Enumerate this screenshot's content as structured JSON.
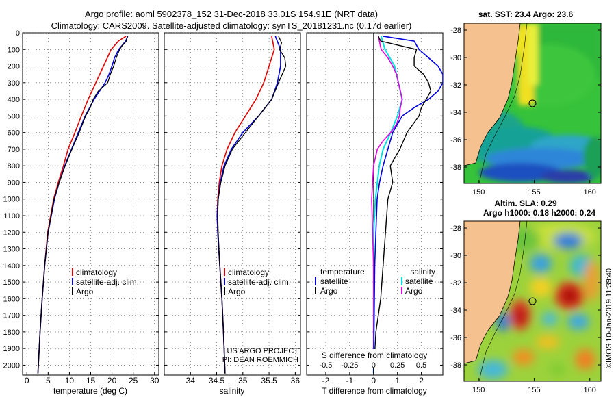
{
  "header": {
    "title_line1": "Argo profile: aoml 5902378_152 31-Dec-2018 33.01S 154.91E (NRT data)",
    "title_line2": "Climatology: CARS2009. Satellite-adjusted climatology: synTS_20181231.nc (0.17d earlier)"
  },
  "depth_axis": {
    "ticks": [
      0,
      100,
      200,
      300,
      400,
      500,
      600,
      700,
      800,
      900,
      1000,
      1100,
      1200,
      1300,
      1400,
      1500,
      1600,
      1700,
      1800,
      1900,
      2000
    ],
    "range": [
      0,
      2060
    ]
  },
  "colors": {
    "climatology": "#e00000",
    "satellite": "#0000dd",
    "argo": "#000000",
    "sat_salinity": "#00e0e0",
    "argo_salinity": "#e000e0",
    "land": "#f5c18e"
  },
  "chart_data": [
    {
      "type": "line",
      "name": "temperature",
      "xlabel": "temperature (deg C)",
      "xlim": [
        -1,
        31
      ],
      "xticks": [
        0,
        5,
        10,
        15,
        20,
        25,
        30
      ],
      "legend": {
        "position": "lower-center",
        "entries": [
          "climatology",
          "satellite-adj. clim.",
          "Argo"
        ]
      },
      "series": [
        {
          "name": "climatology",
          "depth": [
            20,
            50,
            100,
            150,
            200,
            250,
            300,
            400,
            500,
            600,
            700,
            800,
            900,
            1000,
            1200,
            1400,
            1600,
            1800,
            2050
          ],
          "values": [
            23.3,
            21.5,
            19.8,
            18.9,
            18.0,
            17.1,
            16.2,
            14.4,
            12.8,
            11.3,
            9.7,
            8.6,
            7.4,
            6.3,
            4.9,
            4.2,
            3.6,
            3.1,
            2.6
          ]
        },
        {
          "name": "satellite-adj. clim.",
          "depth": [
            20,
            50,
            100,
            150,
            200,
            250,
            300,
            400,
            500,
            600,
            700,
            800,
            900,
            1000,
            1200,
            1400,
            1600,
            1800,
            2050
          ],
          "values": [
            23.7,
            23.2,
            21.6,
            20.6,
            20.0,
            19.3,
            18.4,
            15.8,
            13.7,
            12.1,
            10.5,
            8.9,
            7.6,
            6.5,
            5.0,
            4.2,
            3.6,
            3.1,
            2.6
          ]
        },
        {
          "name": "Argo",
          "depth": [
            20,
            50,
            80,
            100,
            150,
            200,
            250,
            300,
            350,
            400,
            450,
            500,
            600,
            700,
            800,
            900,
            1000,
            1200,
            1400,
            1600,
            1800,
            2050
          ],
          "values": [
            23.6,
            23.4,
            22.3,
            21.8,
            21.0,
            20.4,
            19.6,
            19.0,
            16.8,
            15.6,
            14.9,
            13.8,
            12.3,
            10.6,
            9.0,
            7.6,
            6.4,
            5.0,
            4.2,
            3.6,
            3.1,
            2.6
          ]
        }
      ]
    },
    {
      "type": "line",
      "name": "salinity",
      "xlabel": "salinity",
      "xlim": [
        33.5,
        36.1
      ],
      "xticks": [
        34,
        34.5,
        35,
        35.5,
        36
      ],
      "legend": {
        "position": "lower-center",
        "entries": [
          "climatology",
          "satellite-adj. clim.",
          "Argo"
        ]
      },
      "series": [
        {
          "name": "climatology",
          "depth": [
            20,
            100,
            200,
            300,
            400,
            500,
            600,
            700,
            800,
            900,
            1000,
            1100,
            1200,
            1400,
            1600,
            1800,
            2050
          ],
          "values": [
            35.55,
            35.6,
            35.5,
            35.4,
            35.25,
            35.05,
            34.85,
            34.7,
            34.6,
            34.55,
            34.52,
            34.51,
            34.52,
            34.56,
            34.6,
            34.63,
            34.66
          ]
        },
        {
          "name": "satellite-adj. clim.",
          "depth": [
            20,
            100,
            200,
            300,
            400,
            500,
            600,
            700,
            800,
            900,
            1000,
            1100,
            1200,
            1400,
            1600,
            1800,
            2050
          ],
          "values": [
            35.62,
            35.72,
            35.72,
            35.66,
            35.55,
            35.3,
            35.0,
            34.78,
            34.64,
            34.57,
            34.53,
            34.51,
            34.52,
            34.56,
            34.6,
            34.63,
            34.66
          ]
        },
        {
          "name": "Argo",
          "depth": [
            20,
            60,
            100,
            150,
            200,
            250,
            300,
            400,
            500,
            600,
            700,
            800,
            900,
            1000,
            1100,
            1200,
            1400,
            1600,
            1800,
            2050
          ],
          "values": [
            35.68,
            35.74,
            35.7,
            35.8,
            35.82,
            35.75,
            35.68,
            35.55,
            35.3,
            35.05,
            34.8,
            34.66,
            34.58,
            34.53,
            34.52,
            34.53,
            34.56,
            34.6,
            34.63,
            34.66
          ]
        }
      ]
    },
    {
      "type": "line",
      "name": "difference",
      "xlabel": "T difference from climatology",
      "s_label": "S difference from climatology",
      "xlim": [
        -2.8,
        2.9
      ],
      "xticks": [
        -2,
        -1,
        0,
        1,
        2
      ],
      "s_ticks": [
        "-0.5",
        "-0.25",
        "0",
        "0.25",
        "0.5"
      ],
      "legend_temperature": {
        "title": "temperature",
        "entries": [
          "satellite",
          "Argo"
        ]
      },
      "legend_salinity": {
        "title": "salinity",
        "entries": [
          "satellite",
          "Argo"
        ]
      },
      "series": [
        {
          "name": "temperature satellite",
          "depth": [
            20,
            50,
            100,
            150,
            200,
            250,
            300,
            350,
            400,
            450,
            500,
            600,
            700,
            800,
            900,
            1000,
            1200,
            1400,
            2050
          ],
          "values": [
            0.4,
            1.7,
            1.9,
            2.3,
            2.7,
            2.9,
            2.9,
            2.7,
            2.3,
            1.7,
            1.2,
            0.8,
            0.6,
            0.4,
            0.25,
            0.15,
            0.1,
            0.05,
            0.0
          ]
        },
        {
          "name": "temperature Argo",
          "depth": [
            20,
            50,
            80,
            100,
            150,
            200,
            250,
            300,
            350,
            400,
            450,
            500,
            600,
            700,
            800,
            900,
            1000,
            1200,
            1400,
            1600,
            1800,
            2050
          ],
          "values": [
            0.2,
            0.3,
            1.2,
            1.8,
            1.7,
            1.7,
            2.1,
            2.3,
            2.4,
            2.2,
            2.0,
            1.9,
            1.4,
            1.1,
            0.7,
            0.8,
            0.6,
            0.5,
            0.4,
            0.3,
            0.1,
            0.0
          ]
        },
        {
          "name": "salinity satellite",
          "depth": [
            20,
            100,
            200,
            300,
            400,
            500,
            600,
            700,
            800,
            900,
            1000,
            1200,
            1400,
            2050
          ],
          "values": [
            0.08,
            0.12,
            0.22,
            0.26,
            0.3,
            0.25,
            0.18,
            0.1,
            0.06,
            0.04,
            0.02,
            0.0,
            0.0,
            0.0
          ]
        },
        {
          "name": "salinity Argo",
          "depth": [
            20,
            100,
            150,
            200,
            250,
            300,
            350,
            400,
            450,
            500,
            550,
            600,
            650,
            700,
            800,
            900,
            1000,
            1200,
            1400,
            2050
          ],
          "values": [
            0.05,
            0.08,
            0.15,
            0.2,
            0.24,
            0.26,
            0.28,
            0.3,
            0.28,
            0.27,
            0.24,
            0.18,
            0.1,
            0.04,
            0.0,
            -0.01,
            -0.02,
            -0.01,
            0.0,
            0.0
          ]
        }
      ]
    }
  ],
  "maps": {
    "sst": {
      "title": "sat. SST: 23.4 Argo: 23.6",
      "lat_ticks": [
        "-28",
        "-30",
        "-32",
        "-34",
        "-36",
        "-38"
      ],
      "lon_ticks": [
        "150",
        "155",
        "160"
      ]
    },
    "sla": {
      "title_line1": "Altim. SLA: 0.29",
      "title_line2": "Argo h1000: 0.18 h2000: 0.24",
      "lat_ticks": [
        "-28",
        "-30",
        "-32",
        "-34",
        "-36",
        "-38"
      ],
      "lon_ticks": [
        "150",
        "155",
        "160"
      ]
    }
  },
  "credits": {
    "project": "US ARGO PROJECT",
    "pi": "PI: DEAN ROEMMICH",
    "imos": "©IMOS 10-Jan-2019 11:39:40"
  }
}
